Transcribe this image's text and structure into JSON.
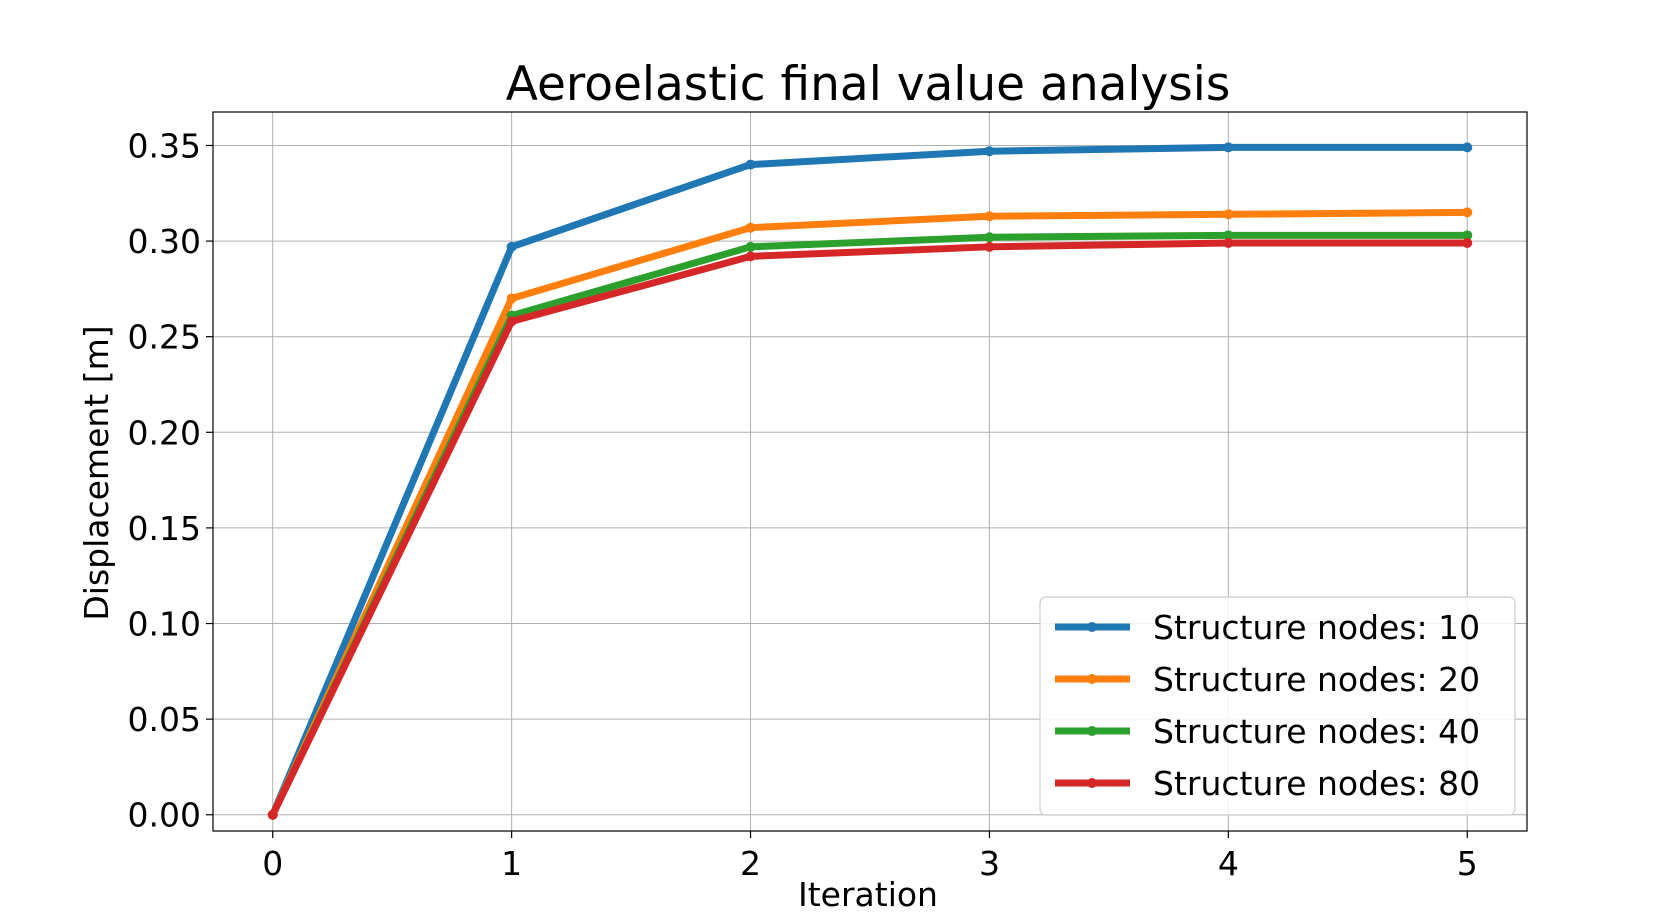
{
  "chart_data": {
    "type": "line",
    "title": "Aeroelastic final value analysis",
    "xlabel": "Iteration",
    "ylabel": "Displacement [m]",
    "x": [
      0,
      1,
      2,
      3,
      4,
      5
    ],
    "xlim": [
      -0.25,
      5.25
    ],
    "ylim": [
      -0.0085,
      0.3675
    ],
    "xticks": [
      "0",
      "1",
      "2",
      "3",
      "4",
      "5"
    ],
    "yticks": [
      "0.00",
      "0.05",
      "0.10",
      "0.15",
      "0.20",
      "0.25",
      "0.30",
      "0.35"
    ],
    "grid": true,
    "legend_position": "lower-right",
    "series": [
      {
        "name": "Structure nodes: 10",
        "color": "#1f77b4",
        "values": [
          0.0,
          0.297,
          0.34,
          0.347,
          0.349,
          0.349
        ]
      },
      {
        "name": "Structure nodes: 20",
        "color": "#ff7f0e",
        "values": [
          0.0,
          0.27,
          0.307,
          0.313,
          0.314,
          0.315
        ]
      },
      {
        "name": "Structure nodes: 40",
        "color": "#2ca02c",
        "values": [
          0.0,
          0.261,
          0.297,
          0.302,
          0.303,
          0.303
        ]
      },
      {
        "name": "Structure nodes: 80",
        "color": "#d62728",
        "values": [
          0.0,
          0.258,
          0.292,
          0.297,
          0.299,
          0.299
        ]
      }
    ]
  }
}
